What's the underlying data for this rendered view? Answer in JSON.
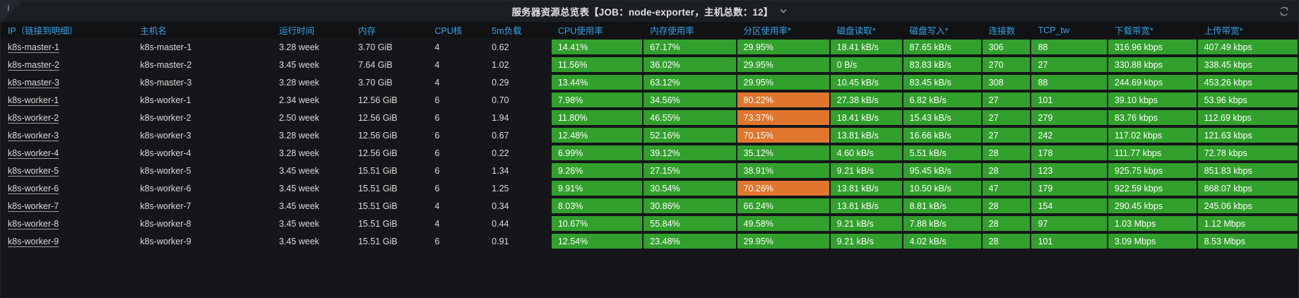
{
  "panel": {
    "title": "服务器资源总览表【JOB：node-exporter，主机总数：12】",
    "info_glyph": "i",
    "colors": {
      "green": "#32a02c",
      "orange": "#e0762d",
      "header_blue": "#33a2e5",
      "panel_bg": "#141619",
      "title_bar_bg": "#1b1e23",
      "text": "#d8d9da"
    }
  },
  "table": {
    "columns": [
      {
        "label": "IP（链接到明细）",
        "width": 10.2,
        "kind": "link"
      },
      {
        "label": "主机名",
        "width": 10.7,
        "kind": "text"
      },
      {
        "label": "运行时间",
        "width": 6.1,
        "kind": "text"
      },
      {
        "label": "内存",
        "width": 5.9,
        "kind": "text"
      },
      {
        "label": "CPU核",
        "width": 4.4,
        "kind": "text"
      },
      {
        "label": "5m负载",
        "width": 5.1,
        "kind": "text"
      },
      {
        "label": "CPU使用率",
        "width": 7.1,
        "kind": "colored"
      },
      {
        "label": "内存使用率",
        "width": 7.2,
        "kind": "colored"
      },
      {
        "label": "分区使用率*",
        "width": 7.2,
        "kind": "colored"
      },
      {
        "label": "磁盘读取*",
        "width": 5.6,
        "kind": "colored"
      },
      {
        "label": "磁盘写入*",
        "width": 6.1,
        "kind": "colored"
      },
      {
        "label": "连接数",
        "width": 3.8,
        "kind": "colored"
      },
      {
        "label": "TCP_tw",
        "width": 5.9,
        "kind": "colored"
      },
      {
        "label": "下载带宽*",
        "width": 6.9,
        "kind": "colored"
      },
      {
        "label": "上传带宽*",
        "width": 7.8,
        "kind": "colored"
      }
    ],
    "rows": [
      {
        "cells": [
          "k8s-master-1",
          "k8s-master-1",
          "3.28 week",
          "3.70 GiB",
          "4",
          "0.62",
          "14.41%",
          "67.17%",
          "29.95%",
          "18.41 kB/s",
          "87.65 kB/s",
          "306",
          "88",
          "316.96 kbps",
          "407.49 kbps"
        ],
        "orange": []
      },
      {
        "cells": [
          "k8s-master-2",
          "k8s-master-2",
          "3.45 week",
          "7.64 GiB",
          "4",
          "1.02",
          "11.56%",
          "36.02%",
          "29.95%",
          "0 B/s",
          "83.83 kB/s",
          "270",
          "27",
          "330.88 kbps",
          "338.45 kbps"
        ],
        "orange": []
      },
      {
        "cells": [
          "k8s-master-3",
          "k8s-master-3",
          "3.28 week",
          "3.70 GiB",
          "4",
          "0.29",
          "13.44%",
          "63.12%",
          "29.95%",
          "10.45 kB/s",
          "83.45 kB/s",
          "308",
          "88",
          "244.69 kbps",
          "453.26 kbps"
        ],
        "orange": []
      },
      {
        "cells": [
          "k8s-worker-1",
          "k8s-worker-1",
          "2.34 week",
          "12.56 GiB",
          "6",
          "0.70",
          "7.98%",
          "34.56%",
          "80.22%",
          "27.38 kB/s",
          "6.82 kB/s",
          "27",
          "101",
          "39.10 kbps",
          "53.96 kbps"
        ],
        "orange": [
          8
        ]
      },
      {
        "cells": [
          "k8s-worker-2",
          "k8s-worker-2",
          "2.50 week",
          "12.56 GiB",
          "6",
          "1.94",
          "11.80%",
          "46.55%",
          "73.37%",
          "18.41 kB/s",
          "15.43 kB/s",
          "27",
          "279",
          "83.76 kbps",
          "112.69 kbps"
        ],
        "orange": [
          8
        ]
      },
      {
        "cells": [
          "k8s-worker-3",
          "k8s-worker-3",
          "3.28 week",
          "12.56 GiB",
          "6",
          "0.67",
          "12.48%",
          "52.16%",
          "70.15%",
          "13.81 kB/s",
          "16.66 kB/s",
          "27",
          "242",
          "117.02 kbps",
          "121.63 kbps"
        ],
        "orange": [
          8
        ]
      },
      {
        "cells": [
          "k8s-worker-4",
          "k8s-worker-4",
          "3.28 week",
          "12.56 GiB",
          "6",
          "0.22",
          "6.99%",
          "39.12%",
          "35.12%",
          "4.60 kB/s",
          "5.51 kB/s",
          "28",
          "178",
          "111.77 kbps",
          "72.78 kbps"
        ],
        "orange": []
      },
      {
        "cells": [
          "k8s-worker-5",
          "k8s-worker-5",
          "3.45 week",
          "15.51 GiB",
          "6",
          "1.34",
          "9.26%",
          "27.15%",
          "38.91%",
          "9.21 kB/s",
          "95.45 kB/s",
          "28",
          "123",
          "925.75 kbps",
          "851.83 kbps"
        ],
        "orange": []
      },
      {
        "cells": [
          "k8s-worker-6",
          "k8s-worker-6",
          "3.45 week",
          "15.51 GiB",
          "6",
          "1.25",
          "9.91%",
          "30.54%",
          "70.26%",
          "13.81 kB/s",
          "10.50 kB/s",
          "47",
          "179",
          "922.59 kbps",
          "868.07 kbps"
        ],
        "orange": [
          8
        ]
      },
      {
        "cells": [
          "k8s-worker-7",
          "k8s-worker-7",
          "3.45 week",
          "15.51 GiB",
          "4",
          "0.34",
          "8.03%",
          "30.86%",
          "66.24%",
          "13.81 kB/s",
          "8.81 kB/s",
          "28",
          "154",
          "290.45 kbps",
          "245.06 kbps"
        ],
        "orange": []
      },
      {
        "cells": [
          "k8s-worker-8",
          "k8s-worker-8",
          "3.45 week",
          "15.51 GiB",
          "4",
          "0.44",
          "10.67%",
          "55.84%",
          "49.58%",
          "9.21 kB/s",
          "7.88 kB/s",
          "28",
          "97",
          "1.03 Mbps",
          "1.12 Mbps"
        ],
        "orange": []
      },
      {
        "cells": [
          "k8s-worker-9",
          "k8s-worker-9",
          "3.45 week",
          "15.51 GiB",
          "6",
          "0.91",
          "12.54%",
          "23.48%",
          "29.95%",
          "9.21 kB/s",
          "4.02 kB/s",
          "28",
          "101",
          "3.09 Mbps",
          "8.53 Mbps"
        ],
        "orange": []
      }
    ]
  }
}
